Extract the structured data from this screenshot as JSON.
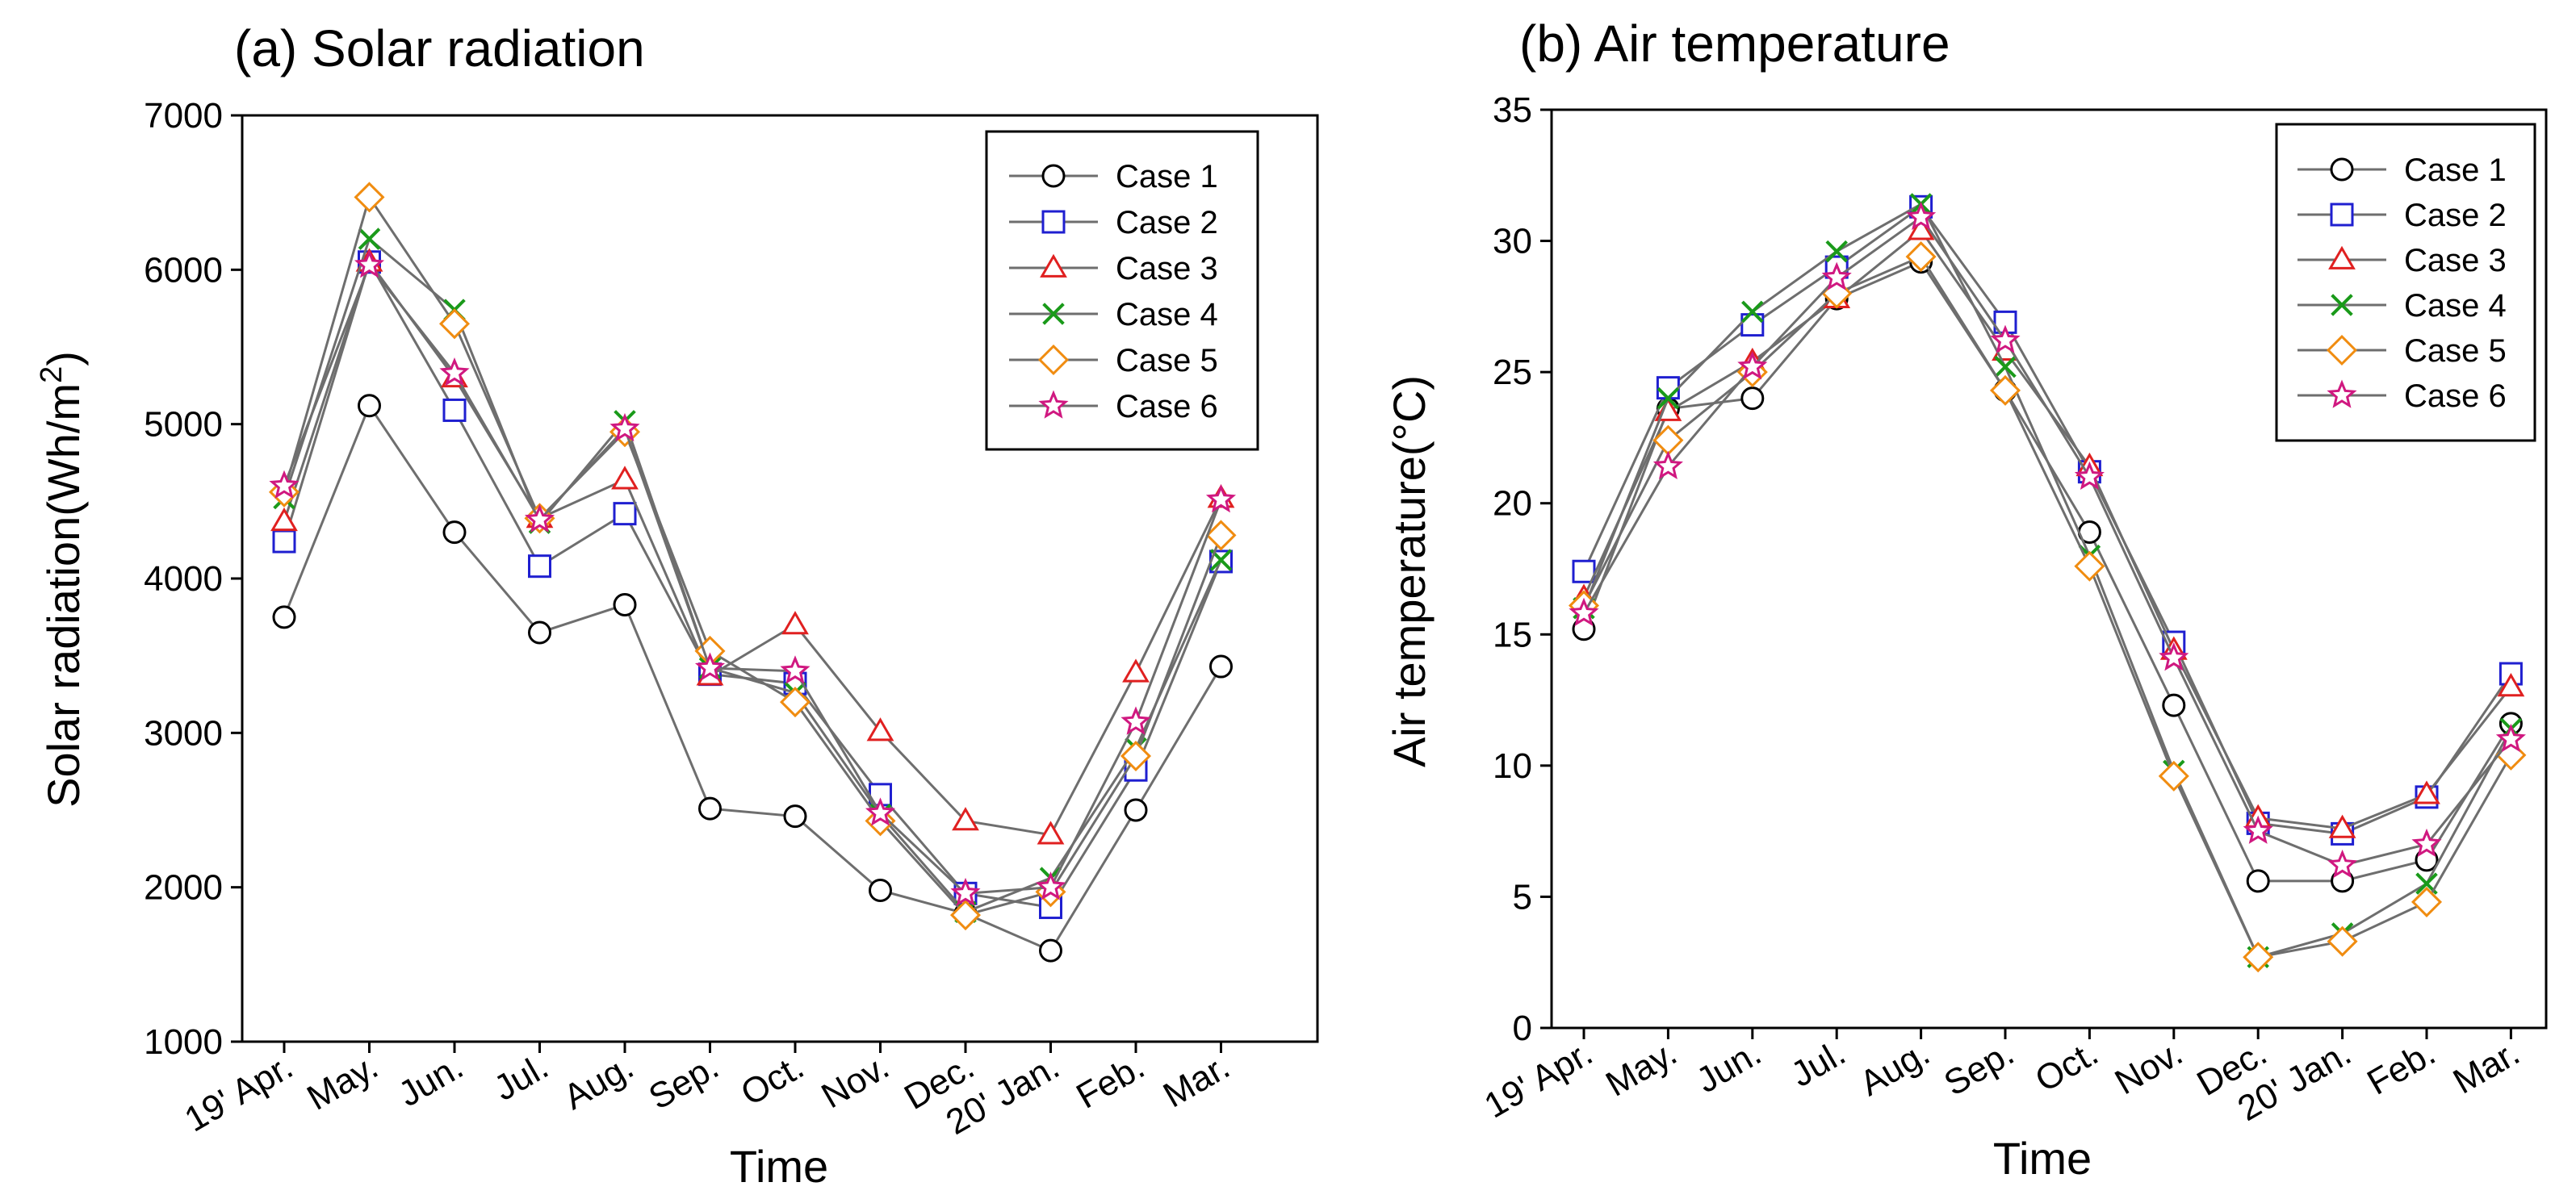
{
  "chart_data": [
    {
      "type": "line",
      "title": "(a) Solar radiation",
      "xlabel": "Time",
      "ylabel": "Solar radiation(Wh/m",
      "ylabel_superscript": "2",
      "ylabel_close": ")",
      "ylim": [
        1000,
        7000
      ],
      "yticks": [
        1000,
        2000,
        3000,
        4000,
        5000,
        6000,
        7000
      ],
      "categories": [
        "19' Apr.",
        "May.",
        "Jun.",
        "Jul.",
        "Aug.",
        "Sep.",
        "Oct.",
        "Nov.",
        "Dec.",
        "20' Jan.",
        "Feb.",
        "Mar."
      ],
      "legend_position": "top-right",
      "series": [
        {
          "name": "Case 1",
          "marker": "circle",
          "color": "#000000",
          "values": [
            3750,
            5120,
            4300,
            3650,
            3830,
            2510,
            2460,
            1980,
            1830,
            1590,
            2500,
            3430
          ]
        },
        {
          "name": "Case 2",
          "marker": "square",
          "color": "#1f1fd0",
          "values": [
            4240,
            6050,
            5090,
            4080,
            4420,
            3380,
            3320,
            2600,
            1960,
            1870,
            2760,
            4110
          ]
        },
        {
          "name": "Case 3",
          "marker": "triangle",
          "color": "#e02020",
          "values": [
            4370,
            6050,
            5300,
            4390,
            4640,
            3370,
            3700,
            3010,
            2430,
            2340,
            3390,
            4520
          ]
        },
        {
          "name": "Case 4",
          "marker": "x",
          "color": "#1a9a1a",
          "values": [
            4520,
            6200,
            5740,
            4360,
            5020,
            3420,
            3260,
            2470,
            1840,
            2060,
            2900,
            4120
          ]
        },
        {
          "name": "Case 5",
          "marker": "diamond",
          "color": "#f08c10",
          "values": [
            4560,
            6470,
            5650,
            4390,
            4950,
            3530,
            3200,
            2430,
            1820,
            1970,
            2850,
            4280
          ]
        },
        {
          "name": "Case 6",
          "marker": "star",
          "color": "#d01880",
          "values": [
            4600,
            6030,
            5330,
            4380,
            4970,
            3420,
            3400,
            2480,
            1960,
            2000,
            3070,
            4510
          ]
        }
      ]
    },
    {
      "type": "line",
      "title": "(b) Air temperature",
      "xlabel": "Time",
      "ylabel": "Air temperature(°C)",
      "ylim": [
        0,
        35
      ],
      "yticks": [
        0,
        5,
        10,
        15,
        20,
        25,
        30,
        35
      ],
      "categories": [
        "19' Apr.",
        "May.",
        "Jun.",
        "Jul.",
        "Aug.",
        "Sep.",
        "Oct.",
        "Nov.",
        "Dec.",
        "20' Jan.",
        "Feb.",
        "Mar."
      ],
      "legend_position": "top-right",
      "series": [
        {
          "name": "Case 1",
          "marker": "circle",
          "color": "#000000",
          "values": [
            15.2,
            23.6,
            24.0,
            27.8,
            29.2,
            24.3,
            18.9,
            12.3,
            5.6,
            5.6,
            6.4,
            11.6
          ]
        },
        {
          "name": "Case 2",
          "marker": "square",
          "color": "#1f1fd0",
          "values": [
            17.4,
            24.4,
            26.8,
            29.0,
            31.3,
            26.9,
            21.2,
            14.7,
            7.8,
            7.4,
            8.8,
            13.5
          ]
        },
        {
          "name": "Case 3",
          "marker": "triangle",
          "color": "#e02020",
          "values": [
            16.4,
            23.5,
            25.4,
            27.8,
            30.4,
            25.8,
            21.4,
            14.4,
            8.0,
            7.6,
            8.9,
            13.0
          ]
        },
        {
          "name": "Case 4",
          "marker": "x",
          "color": "#1a9a1a",
          "values": [
            16.0,
            24.0,
            27.3,
            29.6,
            31.4,
            25.2,
            18.0,
            9.8,
            2.7,
            3.6,
            5.5,
            11.4
          ]
        },
        {
          "name": "Case 5",
          "marker": "diamond",
          "color": "#f08c10",
          "values": [
            16.1,
            22.4,
            25.0,
            28.0,
            29.4,
            24.3,
            17.6,
            9.6,
            2.7,
            3.3,
            4.8,
            10.4
          ]
        },
        {
          "name": "Case 6",
          "marker": "star",
          "color": "#d01880",
          "values": [
            15.8,
            21.4,
            25.2,
            28.6,
            30.9,
            26.2,
            21.0,
            14.1,
            7.5,
            6.2,
            7.0,
            11.0
          ]
        }
      ]
    }
  ]
}
